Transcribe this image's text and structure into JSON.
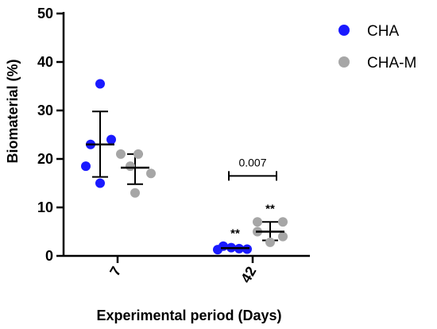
{
  "chart_data": {
    "type": "scatter",
    "title": "",
    "xlabel": "Experimental period (Days)",
    "ylabel": "Biomaterial (%)",
    "ylim": [
      0,
      50
    ],
    "yticks": [
      0,
      10,
      20,
      30,
      40,
      50
    ],
    "categories": [
      "7",
      "42"
    ],
    "legend_position": "top-right",
    "grid": false,
    "series": [
      {
        "name": "CHA",
        "color": "#1a1aff",
        "points": [
          [
            35.5,
            24,
            23,
            18.5,
            15
          ],
          [
            2,
            1.7,
            1.5,
            1.4,
            1.3
          ]
        ],
        "mean": [
          23,
          1.6
        ],
        "error": [
          [
            16.3,
            29.8
          ],
          [
            1.3,
            1.9
          ]
        ],
        "significance": [
          "",
          "**"
        ]
      },
      {
        "name": "CHA-M",
        "color": "#a6a6a6",
        "points": [
          [
            21,
            21,
            18.5,
            17,
            13
          ],
          [
            7,
            7,
            5,
            4,
            2.8
          ]
        ],
        "mean": [
          18.2,
          5
        ],
        "error": [
          [
            14.8,
            21
          ],
          [
            3.2,
            7
          ]
        ],
        "significance": [
          "",
          "**"
        ]
      }
    ],
    "annotations": [
      {
        "category": "42",
        "text": "0.007",
        "y": 16.5
      }
    ]
  }
}
